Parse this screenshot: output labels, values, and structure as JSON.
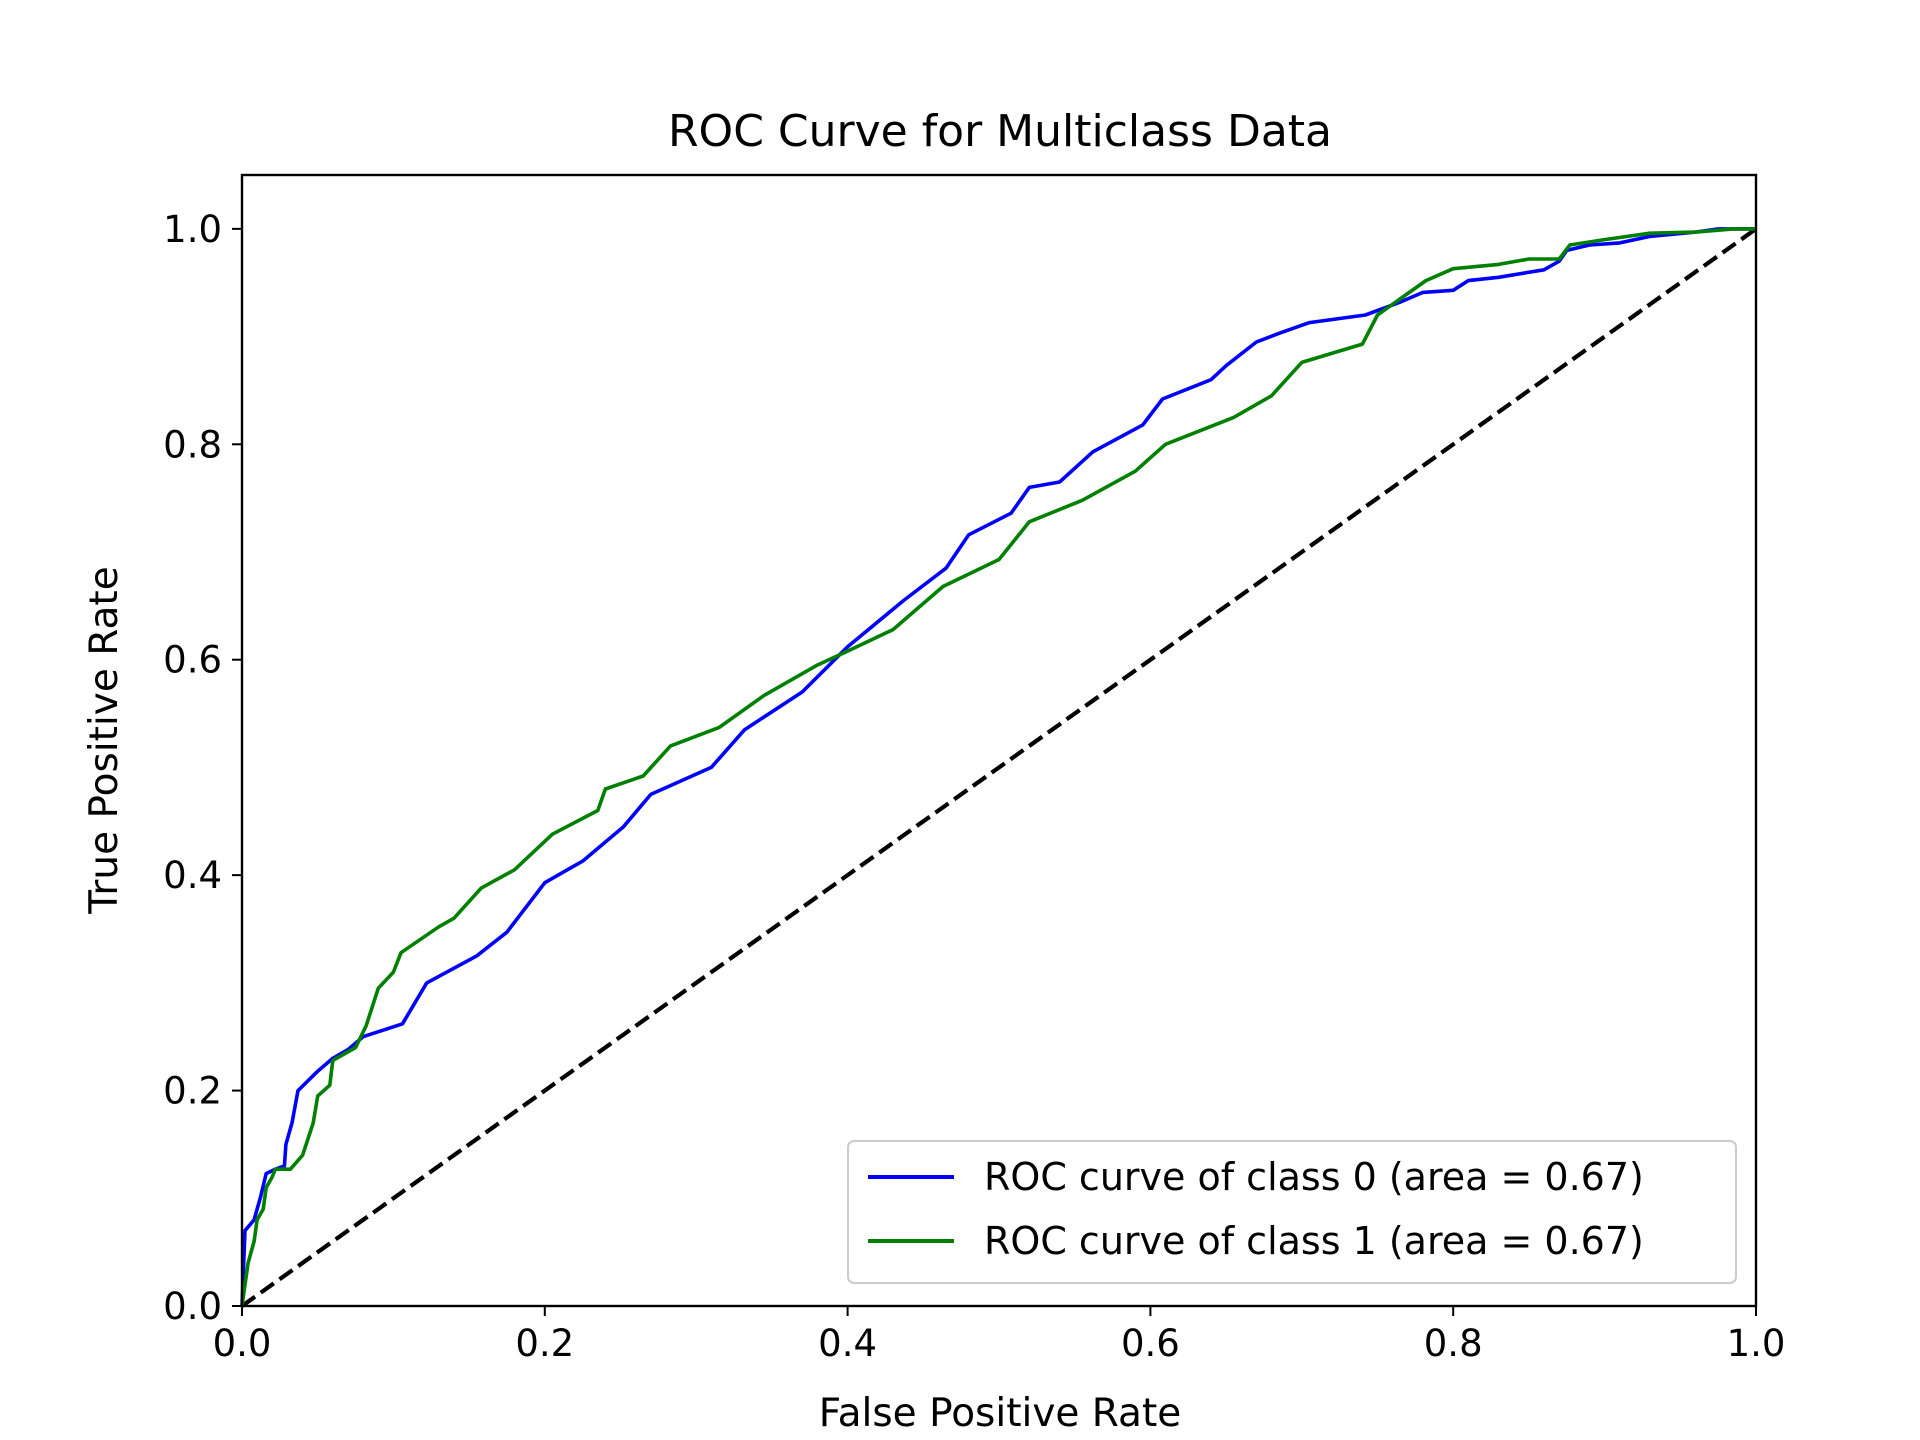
{
  "chart_data": {
    "type": "line",
    "title": "ROC Curve for Multiclass Data",
    "xlabel": "False Positive Rate",
    "ylabel": "True Positive Rate",
    "xlim": [
      0.0,
      1.0
    ],
    "ylim": [
      0.0,
      1.05
    ],
    "xticks": [
      "0.0",
      "0.2",
      "0.4",
      "0.6",
      "0.8",
      "1.0"
    ],
    "yticks": [
      "0.0",
      "0.2",
      "0.4",
      "0.6",
      "0.8",
      "1.0"
    ],
    "grid": false,
    "legend_position": "lower-right",
    "series": [
      {
        "name": "ROC curve of class 0 (area = 0.67)",
        "color": "#0000ff",
        "style": "solid",
        "points": [
          [
            0.0,
            0.0
          ],
          [
            0.002,
            0.07
          ],
          [
            0.005,
            0.075
          ],
          [
            0.008,
            0.08
          ],
          [
            0.012,
            0.1
          ],
          [
            0.016,
            0.123
          ],
          [
            0.022,
            0.127
          ],
          [
            0.028,
            0.13
          ],
          [
            0.029,
            0.15
          ],
          [
            0.033,
            0.17
          ],
          [
            0.037,
            0.2
          ],
          [
            0.05,
            0.218
          ],
          [
            0.06,
            0.23
          ],
          [
            0.07,
            0.238
          ],
          [
            0.08,
            0.25
          ],
          [
            0.106,
            0.262
          ],
          [
            0.122,
            0.3
          ],
          [
            0.155,
            0.325
          ],
          [
            0.175,
            0.347
          ],
          [
            0.2,
            0.393
          ],
          [
            0.225,
            0.413
          ],
          [
            0.252,
            0.445
          ],
          [
            0.27,
            0.475
          ],
          [
            0.31,
            0.5
          ],
          [
            0.332,
            0.535
          ],
          [
            0.37,
            0.57
          ],
          [
            0.4,
            0.612
          ],
          [
            0.437,
            0.655
          ],
          [
            0.465,
            0.685
          ],
          [
            0.48,
            0.716
          ],
          [
            0.508,
            0.736
          ],
          [
            0.52,
            0.76
          ],
          [
            0.54,
            0.765
          ],
          [
            0.562,
            0.793
          ],
          [
            0.595,
            0.818
          ],
          [
            0.608,
            0.842
          ],
          [
            0.64,
            0.86
          ],
          [
            0.65,
            0.873
          ],
          [
            0.67,
            0.895
          ],
          [
            0.685,
            0.903
          ],
          [
            0.705,
            0.913
          ],
          [
            0.742,
            0.92
          ],
          [
            0.765,
            0.932
          ],
          [
            0.78,
            0.941
          ],
          [
            0.8,
            0.943
          ],
          [
            0.81,
            0.952
          ],
          [
            0.83,
            0.955
          ],
          [
            0.86,
            0.962
          ],
          [
            0.87,
            0.97
          ],
          [
            0.875,
            0.98
          ],
          [
            0.89,
            0.985
          ],
          [
            0.91,
            0.987
          ],
          [
            0.93,
            0.993
          ],
          [
            0.96,
            0.997
          ],
          [
            0.975,
            1.0
          ],
          [
            1.0,
            1.0
          ]
        ]
      },
      {
        "name": "ROC curve of class 1 (area = 0.67)",
        "color": "#008000",
        "style": "solid",
        "points": [
          [
            0.0,
            0.0
          ],
          [
            0.004,
            0.04
          ],
          [
            0.006,
            0.05
          ],
          [
            0.008,
            0.06
          ],
          [
            0.01,
            0.08
          ],
          [
            0.014,
            0.09
          ],
          [
            0.016,
            0.11
          ],
          [
            0.02,
            0.12
          ],
          [
            0.022,
            0.127
          ],
          [
            0.032,
            0.127
          ],
          [
            0.04,
            0.14
          ],
          [
            0.047,
            0.17
          ],
          [
            0.05,
            0.195
          ],
          [
            0.058,
            0.205
          ],
          [
            0.06,
            0.228
          ],
          [
            0.075,
            0.24
          ],
          [
            0.082,
            0.26
          ],
          [
            0.09,
            0.295
          ],
          [
            0.1,
            0.31
          ],
          [
            0.105,
            0.328
          ],
          [
            0.13,
            0.352
          ],
          [
            0.14,
            0.36
          ],
          [
            0.158,
            0.388
          ],
          [
            0.18,
            0.405
          ],
          [
            0.205,
            0.438
          ],
          [
            0.235,
            0.46
          ],
          [
            0.24,
            0.48
          ],
          [
            0.265,
            0.492
          ],
          [
            0.283,
            0.52
          ],
          [
            0.315,
            0.537
          ],
          [
            0.345,
            0.567
          ],
          [
            0.38,
            0.595
          ],
          [
            0.4,
            0.608
          ],
          [
            0.43,
            0.628
          ],
          [
            0.463,
            0.668
          ],
          [
            0.5,
            0.693
          ],
          [
            0.52,
            0.728
          ],
          [
            0.555,
            0.748
          ],
          [
            0.59,
            0.775
          ],
          [
            0.61,
            0.8
          ],
          [
            0.655,
            0.825
          ],
          [
            0.68,
            0.845
          ],
          [
            0.7,
            0.876
          ],
          [
            0.74,
            0.893
          ],
          [
            0.75,
            0.92
          ],
          [
            0.782,
            0.952
          ],
          [
            0.8,
            0.963
          ],
          [
            0.83,
            0.967
          ],
          [
            0.85,
            0.972
          ],
          [
            0.87,
            0.972
          ],
          [
            0.877,
            0.985
          ],
          [
            0.9,
            0.99
          ],
          [
            0.93,
            0.996
          ],
          [
            0.96,
            0.997
          ],
          [
            0.985,
            1.0
          ],
          [
            1.0,
            1.0
          ]
        ]
      },
      {
        "name": "",
        "color": "#000000",
        "style": "dashed",
        "points": [
          [
            0.0,
            0.0
          ],
          [
            1.0,
            1.0
          ]
        ]
      }
    ]
  }
}
